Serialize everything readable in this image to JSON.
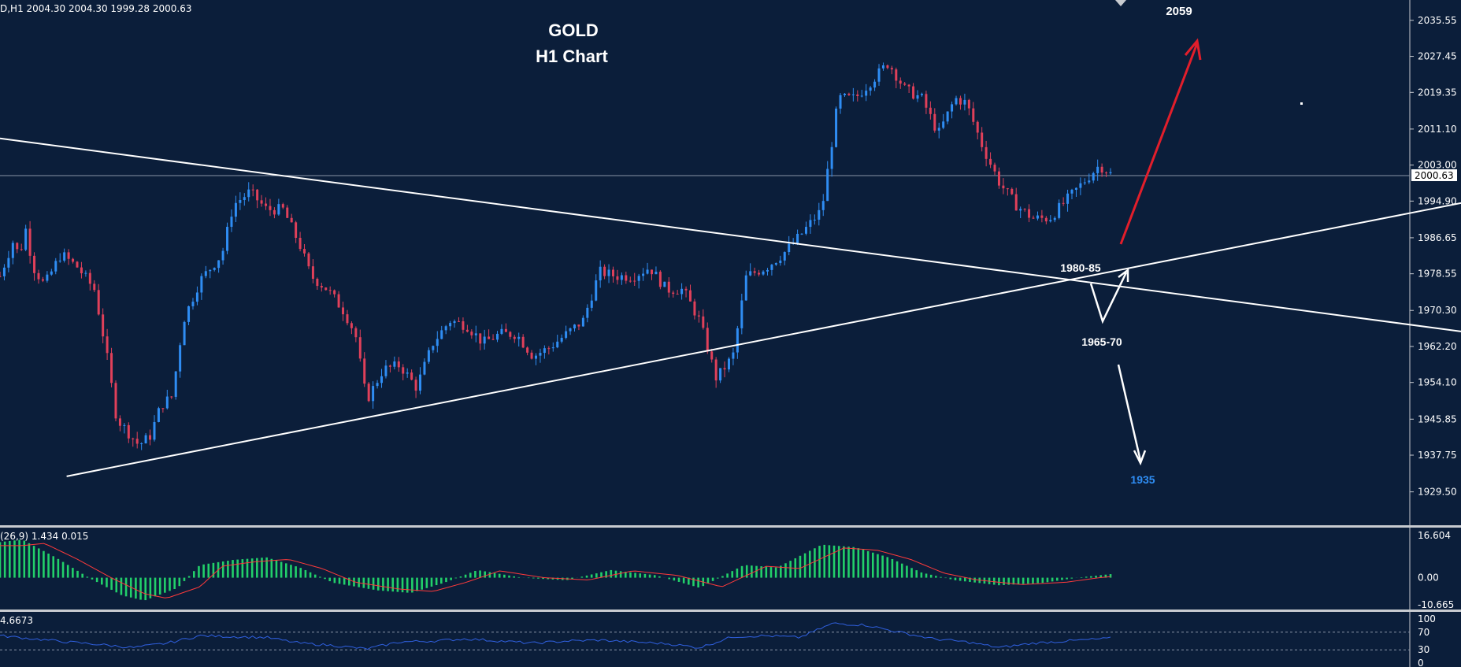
{
  "header": {
    "info": "D,H1  2004.30 2004.30 1999.28 2000.63"
  },
  "chart_title": {
    "line1": "GOLD",
    "line2": "H1 Chart"
  },
  "colors": {
    "background": "#0b1e3a",
    "bull": "#2f8df3",
    "bear": "#e0405a",
    "trendline": "#ffffff",
    "target_up": "#e21e2b",
    "target_down_text": "#2f8df3",
    "macd_hist": "#22d06a",
    "macd_signal": "#ff3a3a",
    "rsi_line": "#3060e0"
  },
  "annotations": {
    "target_up": "2059",
    "zone_upper": "1980-85",
    "zone_lower": "1965-70",
    "target_down": "1935"
  },
  "chart_data": [
    {
      "type": "candlestick",
      "title": "GOLD H1 Chart",
      "ylim": [
        1925.0,
        2038.0
      ],
      "y_ticks": [
        "2035.55",
        "2027.45",
        "2019.35",
        "2011.10",
        "2003.00",
        "1994.90",
        "1986.65",
        "1978.55",
        "1970.30",
        "1962.20",
        "1954.10",
        "1945.85",
        "1937.75",
        "1929.50"
      ],
      "current_price": "2000.63",
      "path_x_range": [
        0,
        1
      ],
      "close_path": [
        [
          0.0,
          1978
        ],
        [
          0.012,
          1986
        ],
        [
          0.018,
          1982
        ],
        [
          0.022,
          1990
        ],
        [
          0.03,
          1980
        ],
        [
          0.04,
          1976
        ],
        [
          0.055,
          1983
        ],
        [
          0.07,
          1980
        ],
        [
          0.085,
          1975
        ],
        [
          0.095,
          1962
        ],
        [
          0.105,
          1946
        ],
        [
          0.115,
          1943
        ],
        [
          0.125,
          1940
        ],
        [
          0.135,
          1942
        ],
        [
          0.145,
          1949
        ],
        [
          0.155,
          1951
        ],
        [
          0.165,
          1968
        ],
        [
          0.18,
          1977
        ],
        [
          0.19,
          1980
        ],
        [
          0.2,
          1983
        ],
        [
          0.21,
          1994
        ],
        [
          0.225,
          1997
        ],
        [
          0.24,
          1993
        ],
        [
          0.255,
          1993
        ],
        [
          0.27,
          1985
        ],
        [
          0.28,
          1978
        ],
        [
          0.295,
          1975
        ],
        [
          0.31,
          1970
        ],
        [
          0.32,
          1965
        ],
        [
          0.33,
          1950
        ],
        [
          0.345,
          1957
        ],
        [
          0.36,
          1958
        ],
        [
          0.375,
          1953
        ],
        [
          0.39,
          1963
        ],
        [
          0.405,
          1968
        ],
        [
          0.42,
          1967
        ],
        [
          0.435,
          1963
        ],
        [
          0.45,
          1965
        ],
        [
          0.465,
          1965
        ],
        [
          0.48,
          1960
        ],
        [
          0.495,
          1962
        ],
        [
          0.51,
          1965
        ],
        [
          0.525,
          1968
        ],
        [
          0.54,
          1979
        ],
        [
          0.555,
          1978
        ],
        [
          0.57,
          1978
        ],
        [
          0.585,
          1980
        ],
        [
          0.6,
          1975
        ],
        [
          0.615,
          1975
        ],
        [
          0.63,
          1968
        ],
        [
          0.645,
          1955
        ],
        [
          0.66,
          1960
        ],
        [
          0.672,
          1978
        ],
        [
          0.69,
          1980
        ],
        [
          0.705,
          1983
        ],
        [
          0.72,
          1987
        ],
        [
          0.73,
          1990
        ],
        [
          0.74,
          1993
        ],
        [
          0.755,
          2018
        ],
        [
          0.77,
          2018
        ],
        [
          0.785,
          2022
        ],
        [
          0.8,
          2026
        ],
        [
          0.815,
          2020
        ],
        [
          0.83,
          2018
        ],
        [
          0.845,
          2010
        ],
        [
          0.86,
          2018
        ],
        [
          0.87,
          2017
        ],
        [
          0.885,
          2007
        ],
        [
          0.9,
          1999
        ],
        [
          0.915,
          1994
        ],
        [
          0.93,
          1991
        ],
        [
          0.945,
          1991
        ],
        [
          0.96,
          1995
        ],
        [
          0.975,
          1999
        ],
        [
          0.99,
          2003
        ],
        [
          1.0,
          2001
        ]
      ],
      "trendlines": [
        {
          "name": "descending resistance",
          "from": [
            0.0,
            2009
          ],
          "to": [
            1.0,
            1976
          ]
        },
        {
          "name": "ascending support",
          "from": [
            0.06,
            1933
          ],
          "to": [
            1.0,
            1979
          ]
        }
      ]
    },
    {
      "type": "histogram",
      "title": "(26,9) 1.434 0.015",
      "y_ticks": [
        "16.604",
        "0.00",
        "-10.665"
      ],
      "ylim": [
        -10.665,
        16.604
      ],
      "path_x_range": [
        0,
        1
      ],
      "hist_path": [
        [
          0.0,
          14
        ],
        [
          0.02,
          15
        ],
        [
          0.05,
          8
        ],
        [
          0.08,
          0
        ],
        [
          0.11,
          -7
        ],
        [
          0.13,
          -9
        ],
        [
          0.16,
          -4
        ],
        [
          0.18,
          5
        ],
        [
          0.21,
          7
        ],
        [
          0.24,
          8
        ],
        [
          0.27,
          4
        ],
        [
          0.3,
          -2
        ],
        [
          0.34,
          -5
        ],
        [
          0.37,
          -6
        ],
        [
          0.4,
          -2
        ],
        [
          0.43,
          3
        ],
        [
          0.47,
          0
        ],
        [
          0.51,
          -1
        ],
        [
          0.55,
          3
        ],
        [
          0.59,
          1
        ],
        [
          0.63,
          -4
        ],
        [
          0.67,
          5
        ],
        [
          0.7,
          4
        ],
        [
          0.74,
          13
        ],
        [
          0.77,
          12
        ],
        [
          0.8,
          8
        ],
        [
          0.83,
          2
        ],
        [
          0.86,
          -1
        ],
        [
          0.9,
          -3
        ],
        [
          0.94,
          -2
        ],
        [
          0.97,
          0
        ],
        [
          1.0,
          1.4
        ]
      ]
    },
    {
      "type": "line",
      "title": "4.6673",
      "y_ticks": [
        "100",
        "70",
        "30",
        "0"
      ],
      "ylim": [
        0,
        100
      ],
      "levels": [
        70,
        30
      ],
      "path_x_range": [
        0,
        1
      ],
      "line_path": [
        [
          0.0,
          62
        ],
        [
          0.03,
          55
        ],
        [
          0.06,
          48
        ],
        [
          0.09,
          42
        ],
        [
          0.12,
          35
        ],
        [
          0.15,
          45
        ],
        [
          0.18,
          62
        ],
        [
          0.21,
          60
        ],
        [
          0.24,
          58
        ],
        [
          0.27,
          45
        ],
        [
          0.3,
          40
        ],
        [
          0.33,
          32
        ],
        [
          0.36,
          48
        ],
        [
          0.39,
          50
        ],
        [
          0.42,
          55
        ],
        [
          0.45,
          50
        ],
        [
          0.48,
          45
        ],
        [
          0.51,
          50
        ],
        [
          0.54,
          52
        ],
        [
          0.57,
          48
        ],
        [
          0.6,
          44
        ],
        [
          0.63,
          35
        ],
        [
          0.66,
          60
        ],
        [
          0.69,
          62
        ],
        [
          0.72,
          58
        ],
        [
          0.75,
          90
        ],
        [
          0.78,
          86
        ],
        [
          0.81,
          70
        ],
        [
          0.84,
          55
        ],
        [
          0.87,
          48
        ],
        [
          0.9,
          35
        ],
        [
          0.93,
          45
        ],
        [
          0.96,
          50
        ],
        [
          1.0,
          56
        ]
      ]
    }
  ]
}
